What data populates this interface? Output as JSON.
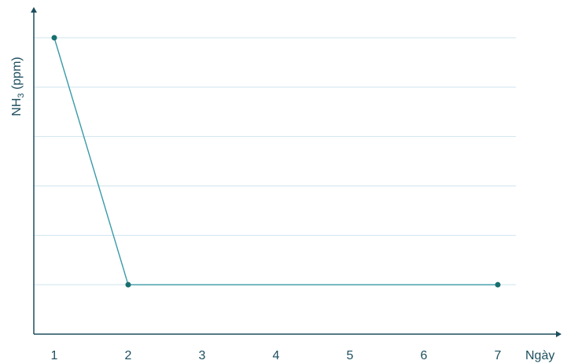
{
  "chart_data": {
    "type": "line",
    "title": "",
    "xlabel": "Ngày",
    "ylabel": {
      "main": "NH",
      "subscript": "3",
      "unit": "(ppm)"
    },
    "x": [
      1,
      2,
      3,
      4,
      5,
      6,
      7
    ],
    "x_tick_labels": [
      "1",
      "2",
      "3",
      "4",
      "5",
      "6",
      "7"
    ],
    "y_tick_labels": [],
    "ylim": [
      0,
      6
    ],
    "grid": true,
    "series": [
      {
        "points": [
          {
            "x": 1,
            "y": 6
          },
          {
            "x": 2,
            "y": 1
          },
          {
            "x": 7,
            "y": 1
          }
        ]
      }
    ],
    "colors": {
      "line": "#3a9aa6",
      "marker": "#17706f",
      "axis": "#1d4f5e",
      "grid": "#cfe4ee",
      "text": "#1d4f5e"
    }
  }
}
